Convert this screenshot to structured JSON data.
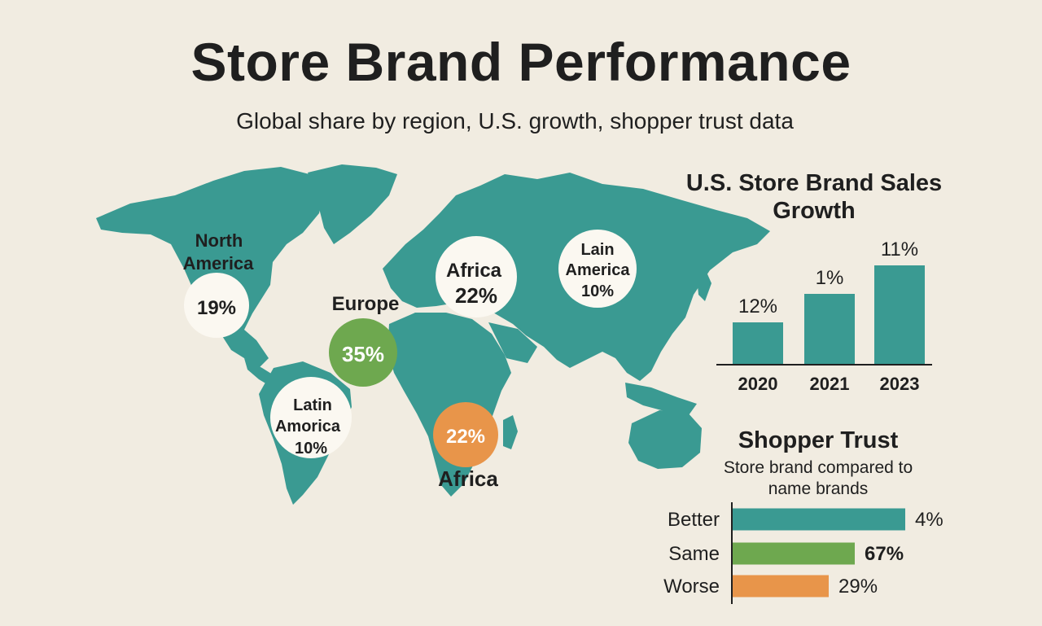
{
  "title": "Store Brand Performance",
  "subtitle": "Global share by region, U.S. growth, shopper trust data",
  "colors": {
    "background": "#f1ece1",
    "teal": "#3a9a92",
    "green": "#6ea84f",
    "orange": "#e8954a",
    "text": "#1f1f1f"
  },
  "chart_data": [
    {
      "type": "map",
      "regions": [
        {
          "label": "North America",
          "value": "19%",
          "style": "white"
        },
        {
          "label": "Europe",
          "value": "35%",
          "style": "green"
        },
        {
          "label": "Africa",
          "value": "22%",
          "style": "white"
        },
        {
          "label": "Lain America",
          "value": "10%",
          "style": "white"
        },
        {
          "label": "Latin Amorica",
          "value": "10%",
          "style": "white"
        },
        {
          "label": "Africa",
          "value": "22%",
          "style": "orange"
        }
      ]
    },
    {
      "type": "bar",
      "title": "U.S. Store Brand Sales Growth",
      "categories": [
        "2020",
        "2021",
        "2023"
      ],
      "values": [
        12,
        1,
        11
      ],
      "value_labels": [
        "12%",
        "1%",
        "11%"
      ],
      "ylim": [
        0,
        15
      ],
      "color": "#3a9a92"
    },
    {
      "type": "bar",
      "orientation": "horizontal",
      "title": "Shopper Trust",
      "subtitle": "Store brand compared to name brands",
      "categories": [
        "Better",
        "Same",
        "Worse"
      ],
      "values": [
        4,
        67,
        29
      ],
      "value_labels": [
        "4%",
        "67%",
        "29%"
      ],
      "colors": [
        "#3a9a92",
        "#6ea84f",
        "#e8954a"
      ]
    }
  ]
}
